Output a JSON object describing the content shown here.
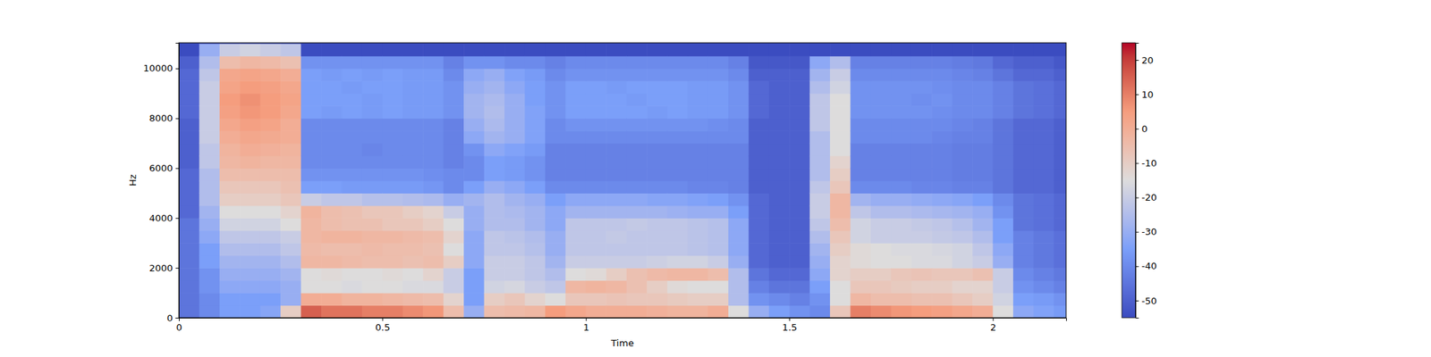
{
  "chart_data": {
    "type": "heatmap",
    "x_label": "Time",
    "y_label": "Hz",
    "xlim": [
      0,
      2.18
    ],
    "xticks": [
      0,
      0.5,
      1,
      1.5,
      2
    ],
    "ylim": [
      0,
      11025
    ],
    "yticks": [
      0,
      2000,
      4000,
      6000,
      8000,
      10000
    ],
    "time_bins": [
      0,
      0.05,
      0.1,
      0.15,
      0.2,
      0.25,
      0.3,
      0.35,
      0.4,
      0.45,
      0.5,
      0.55,
      0.6,
      0.65,
      0.7,
      0.75,
      0.8,
      0.85,
      0.9,
      0.95,
      1,
      1.05,
      1.1,
      1.15,
      1.2,
      1.25,
      1.3,
      1.35,
      1.4,
      1.45,
      1.5,
      1.55,
      1.6,
      1.65,
      1.7,
      1.75,
      1.8,
      1.85,
      1.9,
      1.95,
      2,
      2.05,
      2.1,
      2.15,
      2.18
    ],
    "freq_bins": [
      0,
      500,
      1000,
      1500,
      2000,
      2500,
      3000,
      3500,
      4000,
      4500,
      5000,
      5500,
      6000,
      6500,
      7000,
      7500,
      8000,
      8500,
      9000,
      9500,
      10000,
      10500,
      11000,
      11025
    ],
    "cells": [
      [
        -45,
        -45,
        -45,
        -45,
        -45,
        -45,
        -45,
        -45,
        -48,
        -48,
        -48,
        -48,
        -50,
        -50,
        -50,
        -50,
        -48,
        -48,
        -48,
        -48,
        -50,
        -55,
        -55
      ],
      [
        -40,
        -40,
        -38,
        -38,
        -35,
        -35,
        -32,
        -30,
        -28,
        -25,
        -25,
        -25,
        -22,
        -22,
        -20,
        -20,
        -20,
        -20,
        -20,
        -22,
        -25,
        -30,
        -55
      ],
      [
        -35,
        -35,
        -32,
        -30,
        -28,
        -25,
        -22,
        -18,
        -15,
        -10,
        -8,
        -5,
        -3,
        -2,
        0,
        2,
        4,
        5,
        3,
        2,
        -5,
        -20,
        -55
      ],
      [
        -35,
        -35,
        -32,
        -30,
        -28,
        -25,
        -22,
        -18,
        -15,
        -10,
        -8,
        -5,
        -2,
        0,
        2,
        4,
        6,
        7,
        5,
        3,
        -3,
        -18,
        -55
      ],
      [
        -33,
        -35,
        -32,
        -30,
        -28,
        -25,
        -22,
        -18,
        -15,
        -10,
        -8,
        -5,
        -3,
        -1,
        1,
        3,
        5,
        5,
        4,
        2,
        -4,
        -20,
        -55
      ],
      [
        -10,
        -30,
        -30,
        -28,
        -25,
        -22,
        -20,
        -15,
        -12,
        -8,
        -6,
        -5,
        -3,
        -2,
        0,
        0,
        2,
        3,
        2,
        0,
        -6,
        -22,
        -55
      ],
      [
        15,
        0,
        -15,
        -15,
        -3,
        -4,
        -3,
        -3,
        -2,
        -20,
        -35,
        -38,
        -40,
        -40,
        -40,
        -40,
        -35,
        -35,
        -35,
        -35,
        -38,
        -55,
        -55
      ],
      [
        12,
        0,
        -15,
        -14,
        -3,
        -5,
        -2,
        -5,
        -5,
        -22,
        -35,
        -38,
        -40,
        -40,
        -40,
        -40,
        -36,
        -35,
        -35,
        -36,
        -38,
        -55,
        -55
      ],
      [
        12,
        -2,
        -16,
        -15,
        -4,
        -5,
        -2,
        -6,
        -6,
        -22,
        -36,
        -38,
        -40,
        -40,
        -40,
        -40,
        -35,
        -35,
        -36,
        -35,
        -38,
        -55,
        -55
      ],
      [
        10,
        -2,
        -15,
        -15,
        -5,
        -4,
        -3,
        -6,
        -8,
        -24,
        -36,
        -38,
        -40,
        -41,
        -40,
        -40,
        -36,
        -36,
        -35,
        -36,
        -38,
        -55,
        -55
      ],
      [
        10,
        -3,
        -15,
        -14,
        -5,
        -5,
        -3,
        -8,
        -8,
        -24,
        -36,
        -38,
        -40,
        -40,
        -40,
        -40,
        -35,
        -35,
        -35,
        -35,
        -38,
        -55,
        -55
      ],
      [
        8,
        -4,
        -16,
        -15,
        -6,
        -5,
        -4,
        -8,
        -10,
        -25,
        -36,
        -38,
        -40,
        -40,
        -40,
        -40,
        -36,
        -36,
        -36,
        -36,
        -38,
        -55,
        -55
      ],
      [
        6,
        -5,
        -16,
        -12,
        -5,
        -6,
        -5,
        -10,
        -12,
        -26,
        -37,
        -39,
        -40,
        -40,
        -40,
        -40,
        -36,
        -36,
        -36,
        -36,
        -38,
        -55,
        -55
      ],
      [
        -5,
        -12,
        -20,
        -20,
        -10,
        -15,
        -12,
        -15,
        -20,
        -30,
        -40,
        -40,
        -42,
        -42,
        -42,
        -42,
        -38,
        -38,
        -38,
        -40,
        -42,
        -55,
        -55
      ],
      [
        -30,
        -35,
        -35,
        -35,
        -32,
        -32,
        -32,
        -30,
        -30,
        -28,
        -35,
        -40,
        -40,
        -38,
        -32,
        -30,
        -28,
        -28,
        -30,
        -32,
        -38,
        -55,
        -55
      ],
      [
        -5,
        -10,
        -18,
        -20,
        -20,
        -22,
        -22,
        -25,
        -25,
        -25,
        -30,
        -35,
        -35,
        -32,
        -28,
        -26,
        -25,
        -26,
        -28,
        -30,
        -38,
        -55,
        -55
      ],
      [
        -4,
        -8,
        -17,
        -20,
        -20,
        -22,
        -23,
        -25,
        -26,
        -28,
        -32,
        -36,
        -36,
        -34,
        -30,
        -30,
        -30,
        -30,
        -32,
        -34,
        -40,
        -55,
        -55
      ],
      [
        -3,
        -12,
        -20,
        -22,
        -22,
        -24,
        -25,
        -28,
        -28,
        -30,
        -35,
        -38,
        -38,
        -36,
        -34,
        -34,
        -34,
        -35,
        -35,
        -36,
        -40,
        -55,
        -55
      ],
      [
        5,
        -15,
        -22,
        -25,
        -28,
        -30,
        -30,
        -32,
        -32,
        -35,
        -40,
        -42,
        -42,
        -42,
        -40,
        -40,
        -38,
        -38,
        -38,
        -40,
        -42,
        -55,
        -55
      ],
      [
        2,
        -8,
        -3,
        -15,
        -20,
        -22,
        -22,
        -22,
        -28,
        -32,
        -40,
        -42,
        -42,
        -42,
        -40,
        -38,
        -35,
        -35,
        -35,
        -38,
        -40,
        -55,
        -55
      ],
      [
        0,
        -8,
        -2,
        -14,
        -20,
        -22,
        -22,
        -22,
        -28,
        -32,
        -40,
        -42,
        -42,
        -42,
        -40,
        -38,
        -35,
        -35,
        -35,
        -38,
        -40,
        -55,
        -55
      ],
      [
        0,
        -7,
        -3,
        -10,
        -20,
        -22,
        -21,
        -22,
        -28,
        -32,
        -40,
        -42,
        -42,
        -42,
        -40,
        -38,
        -35,
        -35,
        -36,
        -38,
        -40,
        -55,
        -55
      ],
      [
        0,
        -8,
        -6,
        -6,
        -20,
        -22,
        -22,
        -21,
        -28,
        -32,
        -40,
        -42,
        -42,
        -42,
        -40,
        -38,
        -35,
        -36,
        -35,
        -38,
        -40,
        -55,
        -55
      ],
      [
        -1,
        -8,
        -10,
        -4,
        -19,
        -22,
        -22,
        -22,
        -28,
        -33,
        -40,
        -42,
        -42,
        -42,
        -40,
        -38,
        -36,
        -35,
        -35,
        -38,
        -40,
        -55,
        -55
      ],
      [
        -2,
        -9,
        -14,
        -3,
        -18,
        -22,
        -22,
        -22,
        -29,
        -33,
        -40,
        -42,
        -42,
        -42,
        -40,
        -38,
        -35,
        -35,
        -35,
        -38,
        -40,
        -55,
        -55
      ],
      [
        -2,
        -10,
        -15,
        -3,
        -18,
        -23,
        -23,
        -23,
        -30,
        -34,
        -41,
        -42,
        -42,
        -42,
        -40,
        -38,
        -36,
        -36,
        -36,
        -38,
        -40,
        -55,
        -55
      ],
      [
        0,
        -10,
        -15,
        -5,
        -20,
        -24,
        -24,
        -24,
        -30,
        -35,
        -41,
        -42,
        -42,
        -42,
        -40,
        -39,
        -36,
        -36,
        -36,
        -38,
        -40,
        -55,
        -55
      ],
      [
        -15,
        -25,
        -25,
        -25,
        -30,
        -32,
        -32,
        -32,
        -35,
        -38,
        -42,
        -42,
        -42,
        -42,
        -40,
        -40,
        -38,
        -38,
        -38,
        -40,
        -42,
        -55,
        -55
      ],
      [
        -30,
        -38,
        -42,
        -45,
        -48,
        -48,
        -48,
        -48,
        -48,
        -48,
        -50,
        -50,
        -50,
        -50,
        -50,
        -50,
        -48,
        -48,
        -48,
        -50,
        -52,
        -55,
        -55
      ],
      [
        -35,
        -40,
        -45,
        -48,
        -50,
        -50,
        -50,
        -50,
        -50,
        -50,
        -50,
        -50,
        -50,
        -50,
        -50,
        -50,
        -50,
        -50,
        -50,
        -50,
        -52,
        -55,
        -55
      ],
      [
        -38,
        -42,
        -45,
        -48,
        -50,
        -50,
        -50,
        -50,
        -50,
        -50,
        -50,
        -50,
        -50,
        -50,
        -50,
        -50,
        -50,
        -50,
        -50,
        -50,
        -52,
        -55,
        -55
      ],
      [
        -40,
        -38,
        -35,
        -32,
        -30,
        -28,
        -25,
        -22,
        -20,
        -20,
        -22,
        -25,
        -25,
        -25,
        -25,
        -22,
        -22,
        -22,
        -25,
        -28,
        -32,
        -55,
        -55
      ],
      [
        -8,
        -15,
        -15,
        -12,
        -12,
        -10,
        -8,
        -5,
        -3,
        -3,
        -8,
        -10,
        -12,
        -15,
        -15,
        -15,
        -15,
        -15,
        -18,
        -20,
        -25,
        -55,
        -55
      ],
      [
        10,
        -3,
        -8,
        -10,
        -14,
        -14,
        -18,
        -18,
        -22,
        -28,
        -40,
        -42,
        -42,
        -42,
        -40,
        -40,
        -38,
        -38,
        -38,
        -40,
        -42,
        -55,
        -55
      ],
      [
        8,
        -5,
        -8,
        -10,
        -15,
        -15,
        -20,
        -20,
        -25,
        -30,
        -40,
        -42,
        -42,
        -42,
        -40,
        -40,
        -38,
        -38,
        -38,
        -40,
        -42,
        -55,
        -55
      ],
      [
        6,
        -5,
        -9,
        -8,
        -15,
        -16,
        -20,
        -20,
        -25,
        -30,
        -40,
        -42,
        -42,
        -42,
        -40,
        -40,
        -38,
        -38,
        -38,
        -40,
        -42,
        -55,
        -55
      ],
      [
        5,
        -6,
        -10,
        -7,
        -16,
        -16,
        -20,
        -21,
        -26,
        -31,
        -41,
        -42,
        -42,
        -42,
        -40,
        -40,
        -38,
        -39,
        -38,
        -40,
        -42,
        -55,
        -55
      ],
      [
        4,
        -6,
        -10,
        -8,
        -16,
        -17,
        -21,
        -22,
        -27,
        -32,
        -41,
        -42,
        -42,
        -42,
        -41,
        -40,
        -39,
        -38,
        -39,
        -40,
        -42,
        -55,
        -55
      ],
      [
        2,
        -8,
        -12,
        -8,
        -18,
        -18,
        -22,
        -24,
        -28,
        -33,
        -42,
        -43,
        -43,
        -43,
        -42,
        -41,
        -40,
        -40,
        -40,
        -41,
        -43,
        -55,
        -55
      ],
      [
        0,
        -10,
        -12,
        -6,
        -20,
        -22,
        -25,
        -28,
        -30,
        -35,
        -42,
        -43,
        -43,
        -43,
        -42,
        -42,
        -40,
        -40,
        -40,
        -42,
        -44,
        -55,
        -55
      ],
      [
        -15,
        -18,
        -20,
        -20,
        -30,
        -32,
        -35,
        -35,
        -38,
        -40,
        -45,
        -45,
        -45,
        -45,
        -45,
        -45,
        -42,
        -42,
        -42,
        -45,
        -48,
        -55,
        -55
      ],
      [
        -32,
        -35,
        -38,
        -40,
        -42,
        -42,
        -42,
        -45,
        -45,
        -45,
        -48,
        -48,
        -48,
        -48,
        -48,
        -48,
        -45,
        -45,
        -45,
        -48,
        -50,
        -55,
        -55
      ],
      [
        -34,
        -36,
        -40,
        -42,
        -44,
        -44,
        -44,
        -46,
        -46,
        -46,
        -48,
        -48,
        -48,
        -48,
        -48,
        -48,
        -46,
        -46,
        -46,
        -48,
        -50,
        -55,
        -55
      ],
      [
        -36,
        -38,
        -42,
        -44,
        -46,
        -46,
        -46,
        -48,
        -48,
        -48,
        -50,
        -50,
        -50,
        -50,
        -50,
        -50,
        -48,
        -48,
        -48,
        -50,
        -52,
        -55,
        -55
      ]
    ],
    "colorbar": {
      "range": [
        -55,
        25
      ],
      "ticks": [
        -50,
        -40,
        -30,
        -20,
        -10,
        0,
        10,
        20
      ]
    }
  }
}
